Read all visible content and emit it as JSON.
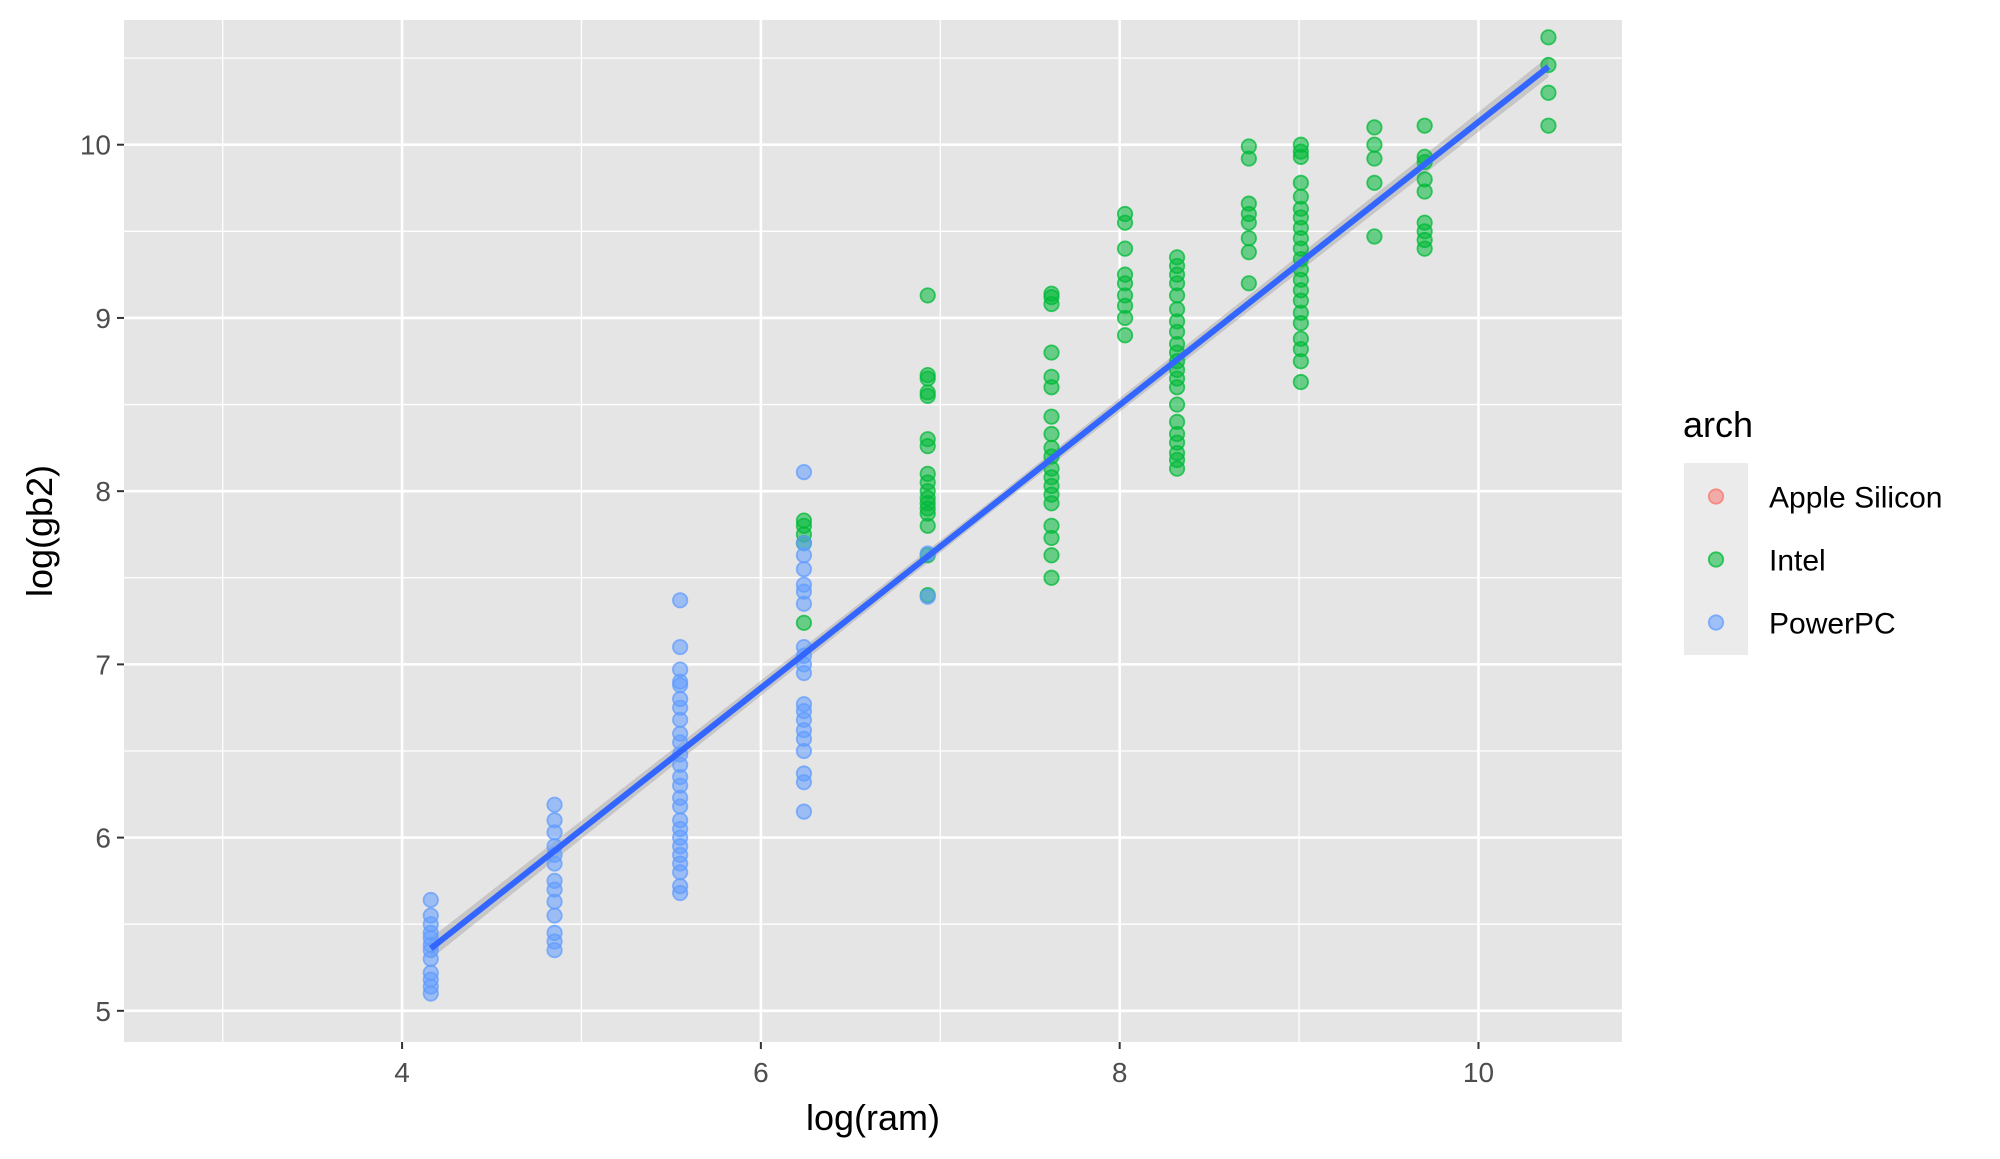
{
  "chart_data": {
    "type": "scatter",
    "xlabel": "log(ram)",
    "ylabel": "log(gb2)",
    "xlim": [
      2.45,
      10.8
    ],
    "ylim": [
      4.82,
      10.72
    ],
    "x_ticks": [
      4,
      6,
      8,
      10
    ],
    "y_ticks": [
      5,
      6,
      7,
      8,
      9,
      10
    ],
    "x_tick_labels": [
      "4",
      "6",
      "8",
      "10"
    ],
    "y_tick_labels": [
      "5",
      "6",
      "7",
      "8",
      "9",
      "10"
    ],
    "grid": true,
    "legend": {
      "title": "arch",
      "position": "right",
      "entries": [
        {
          "label": "Apple Silicon",
          "color": "#F8766D"
        },
        {
          "label": "Intel",
          "color": "#00BA38"
        },
        {
          "label": "PowerPC",
          "color": "#619CFF"
        }
      ]
    },
    "series": [
      {
        "name": "Apple Silicon",
        "color": "#F8766D",
        "points": []
      },
      {
        "name": "Intel",
        "color": "#00BA38",
        "points": [
          [
            6.24,
            7.24
          ],
          [
            6.24,
            7.7
          ],
          [
            6.24,
            7.75
          ],
          [
            6.24,
            7.8
          ],
          [
            6.24,
            7.83
          ],
          [
            6.93,
            7.4
          ],
          [
            6.93,
            7.63
          ],
          [
            6.93,
            7.8
          ],
          [
            6.93,
            7.87
          ],
          [
            6.93,
            7.9
          ],
          [
            6.93,
            7.93
          ],
          [
            6.93,
            7.96
          ],
          [
            6.93,
            8.0
          ],
          [
            6.93,
            8.05
          ],
          [
            6.93,
            8.1
          ],
          [
            6.93,
            8.26
          ],
          [
            6.93,
            8.3
          ],
          [
            6.93,
            8.55
          ],
          [
            6.93,
            8.57
          ],
          [
            6.93,
            8.65
          ],
          [
            6.93,
            8.67
          ],
          [
            6.93,
            9.13
          ],
          [
            7.62,
            7.5
          ],
          [
            7.62,
            7.63
          ],
          [
            7.62,
            7.73
          ],
          [
            7.62,
            7.8
          ],
          [
            7.62,
            7.93
          ],
          [
            7.62,
            7.98
          ],
          [
            7.62,
            8.03
          ],
          [
            7.62,
            8.08
          ],
          [
            7.62,
            8.13
          ],
          [
            7.62,
            8.2
          ],
          [
            7.62,
            8.25
          ],
          [
            7.62,
            8.33
          ],
          [
            7.62,
            8.43
          ],
          [
            7.62,
            8.6
          ],
          [
            7.62,
            8.66
          ],
          [
            7.62,
            8.8
          ],
          [
            7.62,
            9.08
          ],
          [
            7.62,
            9.12
          ],
          [
            7.62,
            9.14
          ],
          [
            8.03,
            8.9
          ],
          [
            8.03,
            9.0
          ],
          [
            8.03,
            9.07
          ],
          [
            8.03,
            9.13
          ],
          [
            8.03,
            9.2
          ],
          [
            8.03,
            9.25
          ],
          [
            8.03,
            9.4
          ],
          [
            8.03,
            9.55
          ],
          [
            8.03,
            9.6
          ],
          [
            8.32,
            8.13
          ],
          [
            8.32,
            8.18
          ],
          [
            8.32,
            8.22
          ],
          [
            8.32,
            8.28
          ],
          [
            8.32,
            8.33
          ],
          [
            8.32,
            8.4
          ],
          [
            8.32,
            8.5
          ],
          [
            8.32,
            8.6
          ],
          [
            8.32,
            8.65
          ],
          [
            8.32,
            8.7
          ],
          [
            8.32,
            8.75
          ],
          [
            8.32,
            8.8
          ],
          [
            8.32,
            8.85
          ],
          [
            8.32,
            8.92
          ],
          [
            8.32,
            8.98
          ],
          [
            8.32,
            9.05
          ],
          [
            8.32,
            9.13
          ],
          [
            8.32,
            9.2
          ],
          [
            8.32,
            9.25
          ],
          [
            8.32,
            9.3
          ],
          [
            8.32,
            9.35
          ],
          [
            8.72,
            9.2
          ],
          [
            8.72,
            9.38
          ],
          [
            8.72,
            9.46
          ],
          [
            8.72,
            9.55
          ],
          [
            8.72,
            9.6
          ],
          [
            8.72,
            9.66
          ],
          [
            8.72,
            9.92
          ],
          [
            8.72,
            9.99
          ],
          [
            9.01,
            8.63
          ],
          [
            9.01,
            8.75
          ],
          [
            9.01,
            8.82
          ],
          [
            9.01,
            8.88
          ],
          [
            9.01,
            8.97
          ],
          [
            9.01,
            9.03
          ],
          [
            9.01,
            9.1
          ],
          [
            9.01,
            9.16
          ],
          [
            9.01,
            9.22
          ],
          [
            9.01,
            9.28
          ],
          [
            9.01,
            9.34
          ],
          [
            9.01,
            9.4
          ],
          [
            9.01,
            9.46
          ],
          [
            9.01,
            9.52
          ],
          [
            9.01,
            9.58
          ],
          [
            9.01,
            9.63
          ],
          [
            9.01,
            9.7
          ],
          [
            9.01,
            9.78
          ],
          [
            9.01,
            9.93
          ],
          [
            9.01,
            9.96
          ],
          [
            9.01,
            10.0
          ],
          [
            9.42,
            9.47
          ],
          [
            9.42,
            9.78
          ],
          [
            9.42,
            9.92
          ],
          [
            9.42,
            10.0
          ],
          [
            9.42,
            10.1
          ],
          [
            9.7,
            9.4
          ],
          [
            9.7,
            9.45
          ],
          [
            9.7,
            9.5
          ],
          [
            9.7,
            9.55
          ],
          [
            9.7,
            9.73
          ],
          [
            9.7,
            9.8
          ],
          [
            9.7,
            9.9
          ],
          [
            9.7,
            9.93
          ],
          [
            9.7,
            10.11
          ],
          [
            10.39,
            10.11
          ],
          [
            10.39,
            10.3
          ],
          [
            10.39,
            10.46
          ],
          [
            10.39,
            10.62
          ]
        ]
      },
      {
        "name": "PowerPC",
        "color": "#619CFF",
        "points": [
          [
            4.16,
            5.1
          ],
          [
            4.16,
            5.14
          ],
          [
            4.16,
            5.18
          ],
          [
            4.16,
            5.22
          ],
          [
            4.16,
            5.3
          ],
          [
            4.16,
            5.35
          ],
          [
            4.16,
            5.38
          ],
          [
            4.16,
            5.42
          ],
          [
            4.16,
            5.45
          ],
          [
            4.16,
            5.5
          ],
          [
            4.16,
            5.55
          ],
          [
            4.16,
            5.64
          ],
          [
            4.85,
            5.35
          ],
          [
            4.85,
            5.4
          ],
          [
            4.85,
            5.45
          ],
          [
            4.85,
            5.55
          ],
          [
            4.85,
            5.63
          ],
          [
            4.85,
            5.7
          ],
          [
            4.85,
            5.75
          ],
          [
            4.85,
            5.85
          ],
          [
            4.85,
            5.9
          ],
          [
            4.85,
            5.95
          ],
          [
            4.85,
            6.03
          ],
          [
            4.85,
            6.1
          ],
          [
            4.85,
            6.19
          ],
          [
            5.55,
            5.68
          ],
          [
            5.55,
            5.72
          ],
          [
            5.55,
            5.8
          ],
          [
            5.55,
            5.85
          ],
          [
            5.55,
            5.9
          ],
          [
            5.55,
            5.95
          ],
          [
            5.55,
            6.0
          ],
          [
            5.55,
            6.05
          ],
          [
            5.55,
            6.1
          ],
          [
            5.55,
            6.18
          ],
          [
            5.55,
            6.23
          ],
          [
            5.55,
            6.3
          ],
          [
            5.55,
            6.35
          ],
          [
            5.55,
            6.42
          ],
          [
            5.55,
            6.48
          ],
          [
            5.55,
            6.55
          ],
          [
            5.55,
            6.6
          ],
          [
            5.55,
            6.68
          ],
          [
            5.55,
            6.75
          ],
          [
            5.55,
            6.8
          ],
          [
            5.55,
            6.88
          ],
          [
            5.55,
            6.9
          ],
          [
            5.55,
            6.97
          ],
          [
            5.55,
            7.1
          ],
          [
            5.55,
            7.37
          ],
          [
            6.24,
            6.15
          ],
          [
            6.24,
            6.32
          ],
          [
            6.24,
            6.37
          ],
          [
            6.24,
            6.5
          ],
          [
            6.24,
            6.57
          ],
          [
            6.24,
            6.62
          ],
          [
            6.24,
            6.68
          ],
          [
            6.24,
            6.73
          ],
          [
            6.24,
            6.77
          ],
          [
            6.24,
            6.95
          ],
          [
            6.24,
            7.0
          ],
          [
            6.24,
            7.05
          ],
          [
            6.24,
            7.1
          ],
          [
            6.24,
            7.35
          ],
          [
            6.24,
            7.42
          ],
          [
            6.24,
            7.46
          ],
          [
            6.24,
            7.55
          ],
          [
            6.24,
            7.63
          ],
          [
            6.24,
            7.7
          ],
          [
            6.24,
            8.11
          ],
          [
            6.93,
            7.39
          ],
          [
            6.93,
            7.64
          ]
        ]
      }
    ],
    "smooth": {
      "color": "#3366FF",
      "x": [
        4.16,
        10.39
      ],
      "y": [
        5.36,
        10.45
      ],
      "band": 0.06
    }
  }
}
